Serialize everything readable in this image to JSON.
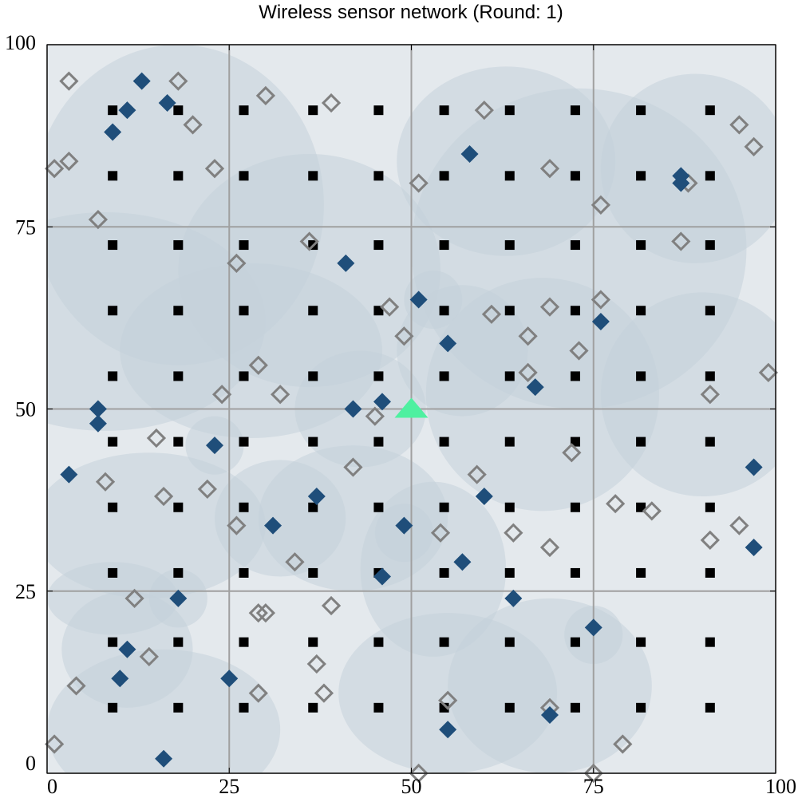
{
  "chart_data": {
    "type": "scatter",
    "title": "Wireless sensor network (Round: 1)",
    "xlabel": "",
    "ylabel": "",
    "xlim": [
      0,
      100
    ],
    "ylim": [
      0,
      100
    ],
    "x_ticks": [
      "0",
      "25",
      "50",
      "75",
      "100"
    ],
    "y_ticks": [
      "0",
      "25",
      "50",
      "75",
      "100"
    ],
    "grid": true,
    "colors": {
      "coverage": "#c5d1da",
      "coverage_background": "#e4e9ed",
      "cluster_head": "#1f4e7a",
      "node_outline": "#808080",
      "grid_point": "#000000",
      "base_station": "#4ef0a0"
    },
    "base_station": {
      "x": 50,
      "y": 50,
      "marker": "triangle"
    },
    "grid_points": {
      "x": [
        9,
        18,
        27,
        36.5,
        45.5,
        54.5,
        63.5,
        72.5,
        81.5,
        91
      ],
      "y": [
        9,
        18,
        27.5,
        36.5,
        45.5,
        54.5,
        63.5,
        72.5,
        82,
        91
      ]
    },
    "coverage_areas": [
      {
        "x": 18,
        "y": 78,
        "rx": 20,
        "ry": 22
      },
      {
        "x": 8,
        "y": 62,
        "rx": 22,
        "ry": 15
      },
      {
        "x": 28,
        "y": 58,
        "rx": 18,
        "ry": 12
      },
      {
        "x": 36,
        "y": 69,
        "rx": 18,
        "ry": 16
      },
      {
        "x": 63,
        "y": 84,
        "rx": 15,
        "ry": 13
      },
      {
        "x": 73,
        "y": 72,
        "rx": 23,
        "ry": 22
      },
      {
        "x": 89,
        "y": 83,
        "rx": 13,
        "ry": 13
      },
      {
        "x": 90,
        "y": 52,
        "rx": 14,
        "ry": 14
      },
      {
        "x": 53,
        "y": 65,
        "rx": 4,
        "ry": 4
      },
      {
        "x": 57,
        "y": 58,
        "rx": 9,
        "ry": 9
      },
      {
        "x": 68,
        "y": 52,
        "rx": 16,
        "ry": 16
      },
      {
        "x": 43,
        "y": 50,
        "rx": 9,
        "ry": 8
      },
      {
        "x": 42,
        "y": 35,
        "rx": 13,
        "ry": 10
      },
      {
        "x": 32,
        "y": 35,
        "rx": 9,
        "ry": 8
      },
      {
        "x": 23,
        "y": 45,
        "rx": 4,
        "ry": 4
      },
      {
        "x": 14,
        "y": 34,
        "rx": 16,
        "ry": 10
      },
      {
        "x": 9,
        "y": 24,
        "rx": 9,
        "ry": 5
      },
      {
        "x": 18,
        "y": 24,
        "rx": 4,
        "ry": 4
      },
      {
        "x": 11,
        "y": 17,
        "rx": 9,
        "ry": 8
      },
      {
        "x": 16,
        "y": 6,
        "rx": 16,
        "ry": 11
      },
      {
        "x": 53,
        "y": 28,
        "rx": 10,
        "ry": 12
      },
      {
        "x": 49,
        "y": 33,
        "rx": 4,
        "ry": 4
      },
      {
        "x": 55,
        "y": 11,
        "rx": 15,
        "ry": 11
      },
      {
        "x": 69,
        "y": 12,
        "rx": 14,
        "ry": 12
      },
      {
        "x": 75,
        "y": 19,
        "rx": 4,
        "ry": 4
      }
    ],
    "series": [
      {
        "marker": "filled-diamond",
        "points": [
          [
            13,
            95
          ],
          [
            16.5,
            92
          ],
          [
            11,
            91
          ],
          [
            9,
            88
          ],
          [
            58,
            85
          ],
          [
            87,
            82
          ],
          [
            87,
            81
          ],
          [
            41,
            70
          ],
          [
            51,
            65
          ],
          [
            76,
            62
          ],
          [
            55,
            59
          ],
          [
            67,
            53
          ],
          [
            46,
            51
          ],
          [
            42,
            50
          ],
          [
            7,
            50
          ],
          [
            7,
            48
          ],
          [
            23,
            45
          ],
          [
            97,
            42
          ],
          [
            3,
            41
          ],
          [
            37,
            38
          ],
          [
            60,
            38
          ],
          [
            49,
            34
          ],
          [
            31,
            34
          ],
          [
            97,
            31
          ],
          [
            57,
            29
          ],
          [
            46,
            27
          ],
          [
            18,
            24
          ],
          [
            64,
            24
          ],
          [
            75,
            20
          ],
          [
            11,
            17
          ],
          [
            10,
            13
          ],
          [
            25,
            13
          ],
          [
            55,
            6
          ],
          [
            69,
            8
          ],
          [
            16,
            2
          ]
        ]
      },
      {
        "marker": "hollow-diamond",
        "points": [
          [
            3,
            95
          ],
          [
            18,
            95
          ],
          [
            30,
            93
          ],
          [
            39,
            92
          ],
          [
            60,
            91
          ],
          [
            20,
            89
          ],
          [
            95,
            89
          ],
          [
            97,
            86
          ],
          [
            1,
            83
          ],
          [
            3,
            84
          ],
          [
            23,
            83
          ],
          [
            51,
            81
          ],
          [
            69,
            83
          ],
          [
            88,
            81
          ],
          [
            76,
            78
          ],
          [
            7,
            76
          ],
          [
            36,
            73
          ],
          [
            87,
            73
          ],
          [
            26,
            70
          ],
          [
            47,
            64
          ],
          [
            61,
            63
          ],
          [
            69,
            64
          ],
          [
            76,
            65
          ],
          [
            49,
            60
          ],
          [
            66,
            60
          ],
          [
            73,
            58
          ],
          [
            29,
            56
          ],
          [
            66,
            55
          ],
          [
            99,
            55
          ],
          [
            24,
            52
          ],
          [
            32,
            52
          ],
          [
            91,
            52
          ],
          [
            45,
            49
          ],
          [
            15,
            46
          ],
          [
            72,
            44
          ],
          [
            42,
            42
          ],
          [
            59,
            41
          ],
          [
            8,
            40
          ],
          [
            22,
            39
          ],
          [
            16,
            38
          ],
          [
            78,
            37
          ],
          [
            83,
            36
          ],
          [
            26,
            34
          ],
          [
            54,
            33
          ],
          [
            64,
            33
          ],
          [
            95,
            34
          ],
          [
            91,
            32
          ],
          [
            69,
            31
          ],
          [
            34,
            29
          ],
          [
            12,
            24
          ],
          [
            29,
            22
          ],
          [
            30,
            22
          ],
          [
            39,
            23
          ],
          [
            14,
            16
          ],
          [
            37,
            15
          ],
          [
            4,
            12
          ],
          [
            29,
            11
          ],
          [
            38,
            11
          ],
          [
            55,
            10
          ],
          [
            69,
            9
          ],
          [
            79,
            4
          ],
          [
            1,
            4
          ],
          [
            51,
            0
          ],
          [
            75,
            0
          ]
        ]
      }
    ]
  }
}
